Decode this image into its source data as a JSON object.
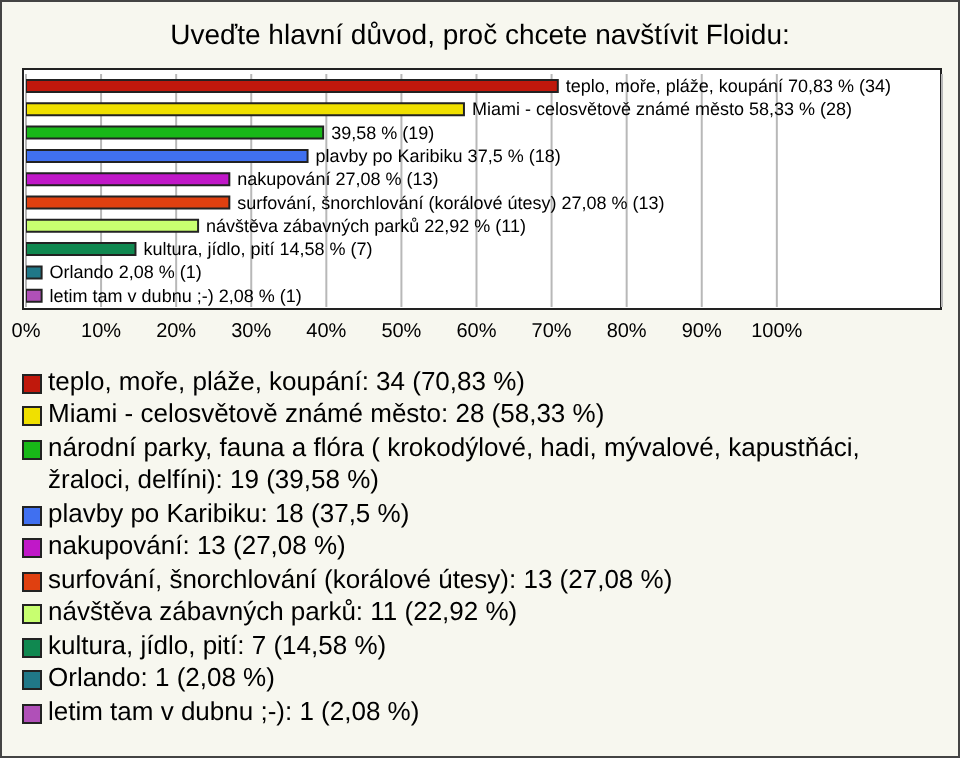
{
  "chart_data": {
    "type": "bar",
    "orientation": "horizontal",
    "stacked": true,
    "title": "Uveďte hlavní důvod, proč chcete navštívit Floidu:",
    "categories": [
      null,
      null,
      null,
      null,
      null,
      null,
      null,
      null,
      null,
      null
    ],
    "series": [
      {
        "name": "teplo, moře, pláže, koupání: 34 (70,83 %)",
        "color": "#c0180c",
        "values": [
          70.83,
          null,
          null,
          null,
          null,
          null,
          null,
          null,
          null,
          null
        ],
        "value_labels": [
          "teplo, moře, pláže, koupání 70,83 % (34)",
          null,
          null,
          null,
          null,
          null,
          null,
          null,
          null,
          null
        ]
      },
      {
        "name": "Miami - celosvětově známé město: 28 (58,33 %)",
        "color": "#f0e000",
        "values": [
          null,
          58.33,
          null,
          null,
          null,
          null,
          null,
          null,
          null,
          null
        ],
        "value_labels": [
          null,
          "Miami - celosvětově známé město 58,33 % (28)",
          null,
          null,
          null,
          null,
          null,
          null,
          null,
          null
        ]
      },
      {
        "name": "národní parky, fauna a flóra ( krokodýlové, hadi, mývalové, kapustňáci, žraloci, delfíni): 19 (39,58 %)",
        "color": "#18b818",
        "values": [
          null,
          null,
          39.58,
          null,
          null,
          null,
          null,
          null,
          null,
          null
        ],
        "value_labels": [
          null,
          null,
          "39,58 % (19)",
          null,
          null,
          null,
          null,
          null,
          null,
          null
        ]
      },
      {
        "name": "plavby po Karibiku: 18 (37,5 %)",
        "color": "#4070f0",
        "values": [
          null,
          null,
          null,
          37.5,
          null,
          null,
          null,
          null,
          null,
          null
        ],
        "value_labels": [
          null,
          null,
          null,
          "plavby po Karibiku 37,5 % (18)",
          null,
          null,
          null,
          null,
          null,
          null
        ]
      },
      {
        "name": "nakupování: 13 (27,08 %)",
        "color": "#c018c8",
        "values": [
          null,
          null,
          null,
          null,
          27.08,
          null,
          null,
          null,
          null,
          null
        ],
        "value_labels": [
          null,
          null,
          null,
          null,
          "nakupování 27,08 % (13)",
          null,
          null,
          null,
          null,
          null
        ]
      },
      {
        "name": "surfování, šnorchlování (korálové útesy): 13 (27,08 %)",
        "color": "#e04010",
        "values": [
          null,
          null,
          null,
          null,
          null,
          27.08,
          null,
          null,
          null,
          null
        ],
        "value_labels": [
          null,
          null,
          null,
          null,
          null,
          "surfování, šnorchlování (korálové útesy) 27,08 % (13)",
          null,
          null,
          null,
          null
        ]
      },
      {
        "name": "návštěva zábavných parků: 11 (22,92 %)",
        "color": "#c8ff70",
        "values": [
          null,
          null,
          null,
          null,
          null,
          null,
          22.92,
          null,
          null,
          null
        ],
        "value_labels": [
          null,
          null,
          null,
          null,
          null,
          null,
          "návštěva zábavných parků 22,92 % (11)",
          null,
          null,
          null
        ]
      },
      {
        "name": "kultura, jídlo, pití: 7 (14,58 %)",
        "color": "#108850",
        "values": [
          null,
          null,
          null,
          null,
          null,
          null,
          null,
          14.58,
          null,
          null
        ],
        "value_labels": [
          null,
          null,
          null,
          null,
          null,
          null,
          null,
          "kultura, jídlo, pití 14,58 % (7)",
          null,
          null
        ]
      },
      {
        "name": "Orlando: 1 (2,08 %)",
        "color": "#207888",
        "values": [
          null,
          null,
          null,
          null,
          null,
          null,
          null,
          null,
          2.08,
          null
        ],
        "value_labels": [
          null,
          null,
          null,
          null,
          null,
          null,
          null,
          null,
          "Orlando 2,08 % (1)",
          null
        ]
      },
      {
        "name": "letim tam v dubnu ;-): 1 (2,08 %)",
        "color": "#b050b8",
        "values": [
          null,
          null,
          null,
          null,
          null,
          null,
          null,
          null,
          null,
          2.08
        ],
        "value_labels": [
          null,
          null,
          null,
          null,
          null,
          null,
          null,
          null,
          null,
          "letim tam v dubnu ;-) 2,08 % (1)"
        ]
      }
    ],
    "xlim": [
      0,
      122
    ],
    "xticks": [
      {
        "value": 0,
        "label": "0%"
      },
      {
        "value": 10,
        "label": "10%"
      },
      {
        "value": 20,
        "label": "20%"
      },
      {
        "value": 30,
        "label": "30%"
      },
      {
        "value": 40,
        "label": "40%"
      },
      {
        "value": 50,
        "label": "50%"
      },
      {
        "value": 60,
        "label": "60%"
      },
      {
        "value": 70,
        "label": "70%"
      },
      {
        "value": 80,
        "label": "80%"
      },
      {
        "value": 90,
        "label": "90%"
      },
      {
        "value": 100,
        "label": "100%"
      }
    ],
    "grid": "x",
    "legend": "bottom"
  }
}
